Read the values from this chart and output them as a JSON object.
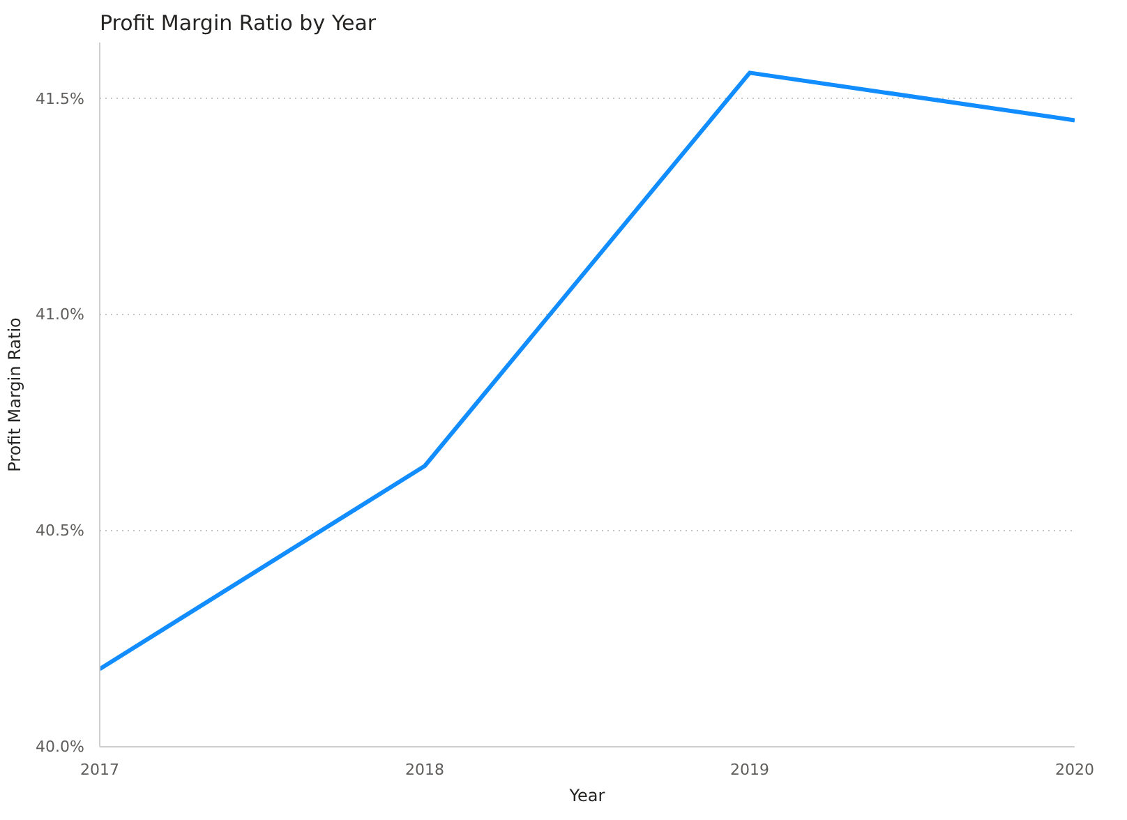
{
  "chart_data": {
    "type": "line",
    "title": "Profit Margin Ratio by Year",
    "xlabel": "Year",
    "ylabel": "Profit Margin Ratio",
    "x": [
      2017,
      2018,
      2019,
      2020
    ],
    "series": [
      {
        "color": "#118dff",
        "values": [
          40.18,
          40.65,
          41.56,
          41.45
        ]
      }
    ],
    "xlim": [
      2017,
      2020
    ],
    "xticks": [
      2017,
      2018,
      2019,
      2020
    ],
    "ylim": [
      40.0,
      41.63
    ],
    "yticks": [
      {
        "value": 40.0,
        "label": "40.0%"
      },
      {
        "value": 40.5,
        "label": "40.5%"
      },
      {
        "value": 41.0,
        "label": "41.0%"
      },
      {
        "value": 41.5,
        "label": "41.5%"
      }
    ],
    "grid": "y",
    "marker": "none",
    "line_style": "solid"
  }
}
